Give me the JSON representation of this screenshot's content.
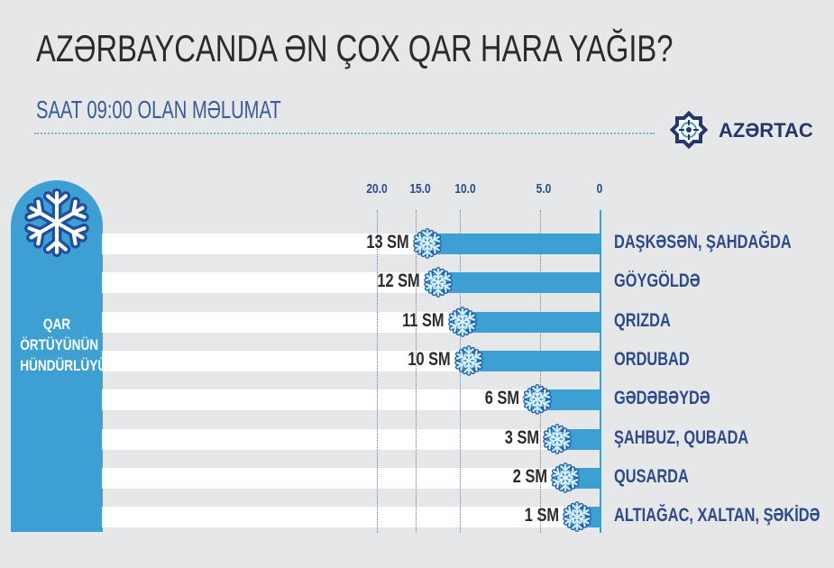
{
  "header": {
    "title": "AZƏRBAYCANDA ƏN ÇOX QAR HARA YAĞIB?",
    "subtitle": "SAAT 09:00 OLAN MƏLUMAT",
    "logo_text": "AZƏRTAC",
    "logo_icon": "azertac-star-emblem-icon"
  },
  "side_panel": {
    "icon": "snowflake-icon",
    "label_lines": [
      "QAR",
      "ÖRTÜYÜNÜN",
      "HÜNDÜRLÜYÜ"
    ]
  },
  "axis": {
    "ticks": [
      "20.0",
      "15.0",
      "10.0",
      "5.0",
      "0"
    ]
  },
  "colors": {
    "background": "#e6e7e9",
    "bar": "#3e9fd3",
    "title": "#2b2b2b",
    "accent_text": "#2e4a8a",
    "row_band": "#ffffff"
  },
  "rows": [
    {
      "value_label": "13 SM",
      "place": "DAŞKƏSƏN, ŞAHDAĞDA"
    },
    {
      "value_label": "12 SM",
      "place": "GÖYGÖLDƏ"
    },
    {
      "value_label": "11 SM",
      "place": "QRIZDA"
    },
    {
      "value_label": "10 SM",
      "place": "ORDUBAD"
    },
    {
      "value_label": "6 SM",
      "place": "GƏDƏBƏYDƏ"
    },
    {
      "value_label": "3 SM",
      "place": "ŞAHBUZ, QUBADA"
    },
    {
      "value_label": "2 SM",
      "place": "QUSARDA"
    },
    {
      "value_label": "1 SM",
      "place": "ALTIAĞAC, XALTAN, ŞƏKİDƏ"
    }
  ],
  "chart_data": {
    "type": "bar",
    "orientation": "horizontal",
    "title": "AZƏRBAYCANDA ƏN ÇOX QAR HARA YAĞIB?",
    "subtitle": "SAAT 09:00 OLAN MƏLUMAT",
    "categories": [
      "DAŞKƏSƏN, ŞAHDAĞDA",
      "GÖYGÖLDƏ",
      "QRIZDA",
      "ORDUBAD",
      "GƏDƏBƏYDƏ",
      "ŞAHBUZ, QUBADA",
      "QUSARDA",
      "ALTIAĞAC, XALTAN, ŞƏKİDƏ"
    ],
    "values": [
      13,
      12,
      11,
      10,
      6,
      3,
      2,
      1
    ],
    "unit": "SM",
    "xlabel": "",
    "ylabel": "QAR ÖRTÜYÜNÜN HÜNDÜRLÜYÜ",
    "xticks": [
      "20.0",
      "15.0",
      "10.0",
      "5.0",
      "0"
    ],
    "xlim": [
      20,
      0
    ],
    "grid": true,
    "axis_reversed": true,
    "legend": null
  }
}
